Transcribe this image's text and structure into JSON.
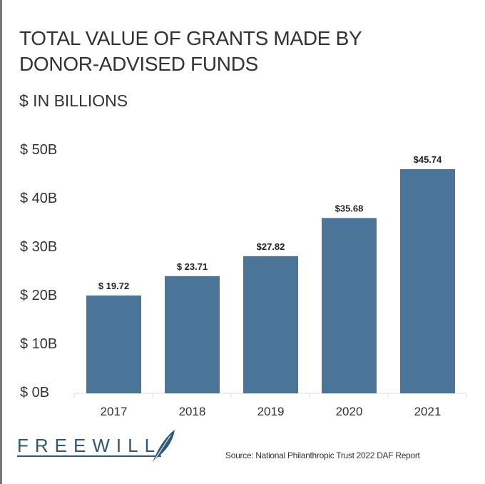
{
  "chart_data": {
    "type": "bar",
    "title": "TOTAL VALUE OF GRANTS MADE BY DONOR-ADVISED FUNDS",
    "subtitle": "$ IN BILLIONS",
    "categories": [
      "2017",
      "2018",
      "2019",
      "2020",
      "2021"
    ],
    "values": [
      19.72,
      23.71,
      27.82,
      35.68,
      45.74
    ],
    "data_labels": [
      "$ 19.72",
      "$ 23.71",
      "$27.82",
      "$35.68",
      "$45.74"
    ],
    "yticks": [
      0,
      10,
      20,
      30,
      40,
      50
    ],
    "ytick_labels": [
      "$ 0B",
      "$ 10B",
      "$ 20B",
      "$ 30B",
      "$ 40B",
      "$ 50B"
    ],
    "ylim": [
      0,
      50
    ],
    "grid": false,
    "bar_color": "#4b7598",
    "source": "Source: National Philanthropic Trust 2022 DAF Report"
  },
  "branding": {
    "logo_text": "FREEWILL",
    "logo_color": "#2f5877"
  }
}
